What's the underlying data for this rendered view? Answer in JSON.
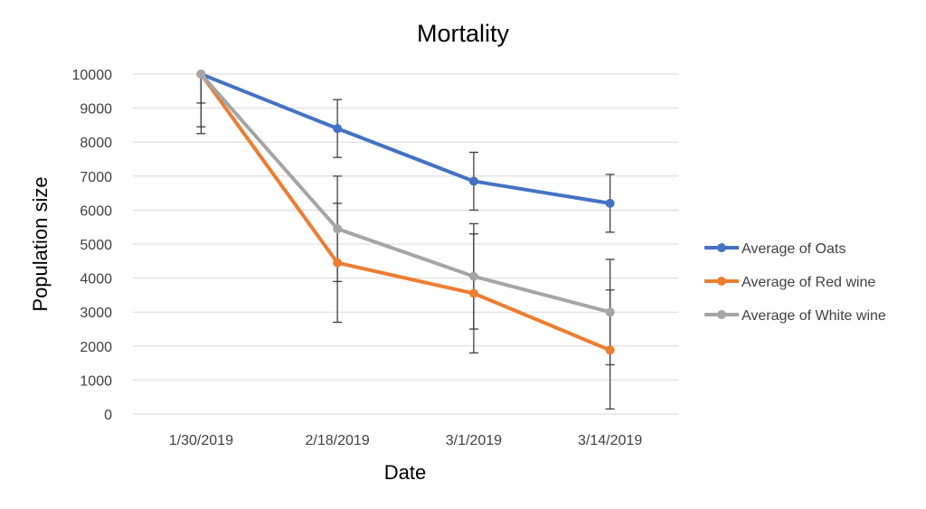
{
  "chart_data": {
    "type": "line",
    "title": "Mortality",
    "xlabel": "Date",
    "ylabel": "Population size",
    "categories": [
      "1/30/2019",
      "2/18/2019",
      "3/1/2019",
      "3/14/2019"
    ],
    "ylim": [
      0,
      10000
    ],
    "yticks": [
      0,
      1000,
      2000,
      3000,
      4000,
      5000,
      6000,
      7000,
      8000,
      9000,
      10000
    ],
    "grid": "horizontal",
    "legend_position": "right",
    "error_bars": true,
    "series": [
      {
        "name": "Average of Oats",
        "color": "#4472C4",
        "values": [
          10000,
          8400,
          6850,
          6200
        ],
        "error_low": [
          8250,
          7550,
          6000,
          5350
        ],
        "error_high": [
          10000,
          9250,
          7700,
          7050
        ]
      },
      {
        "name": "Average of Red wine",
        "color": "#ED7D31",
        "values": [
          10000,
          4450,
          3550,
          1880
        ],
        "error_low": [
          8450,
          2700,
          1800,
          150
        ],
        "error_high": [
          10000,
          6200,
          5300,
          3650
        ]
      },
      {
        "name": "Average of White wine",
        "color": "#A5A5A5",
        "values": [
          10000,
          5450,
          4050,
          3000
        ],
        "error_low": [
          9150,
          3900,
          2500,
          1450
        ],
        "error_high": [
          10000,
          7000,
          5600,
          4550
        ]
      }
    ]
  }
}
